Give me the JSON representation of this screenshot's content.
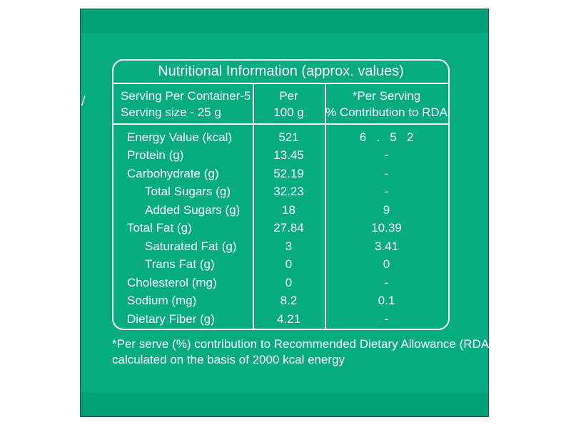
{
  "colors": {
    "page_background": "#ffffff",
    "panel_green": "#06ab80",
    "band_green": "#02a077",
    "panel_border_dark": "#2a5847",
    "table_lines": "#ffffff",
    "text": "#ffffff"
  },
  "stray_mark": "/",
  "table": {
    "title": "Nutritional Information (approx. values)",
    "header": {
      "serving_line1": "Serving Per Container-5",
      "serving_line2": "Serving size - 25 g",
      "per_line1": "Per",
      "per_line2": "100 g",
      "rda_line1": "*Per Serving",
      "rda_line2": "% Contribution to RDA"
    },
    "rows": [
      {
        "name": "Energy Value (kcal)",
        "per_100g": "521",
        "rda": "6   .   5   2"
      },
      {
        "name": "Protein (g)",
        "per_100g": "13.45",
        "rda": "-"
      },
      {
        "name": "Carbohydrate (g)",
        "per_100g": "52.19",
        "rda": "-"
      },
      {
        "name": "Total Sugars (g)",
        "per_100g": "32.23",
        "rda": "-"
      },
      {
        "name": "Added Sugars (g)",
        "per_100g": "18",
        "rda": "9"
      },
      {
        "name": "Total Fat (g)",
        "per_100g": "27.84",
        "rda": "10.39"
      },
      {
        "name": "Saturated Fat (g)",
        "per_100g": "3",
        "rda": "3.41"
      },
      {
        "name": "Trans Fat (g)",
        "per_100g": "0",
        "rda": "0"
      },
      {
        "name": "Cholesterol (mg)",
        "per_100g": "0",
        "rda": "-"
      },
      {
        "name": "Sodium (mg)",
        "per_100g": "8.2",
        "rda": "0.1"
      },
      {
        "name": "Dietary Fiber (g)",
        "per_100g": "4.21",
        "rda": "-"
      }
    ],
    "footnote_line1": "*Per serve (%) contribution to Recommended Dietary Allowance (RDA)",
    "footnote_line2": "calculated on the basis of 2000 kcal energy"
  }
}
